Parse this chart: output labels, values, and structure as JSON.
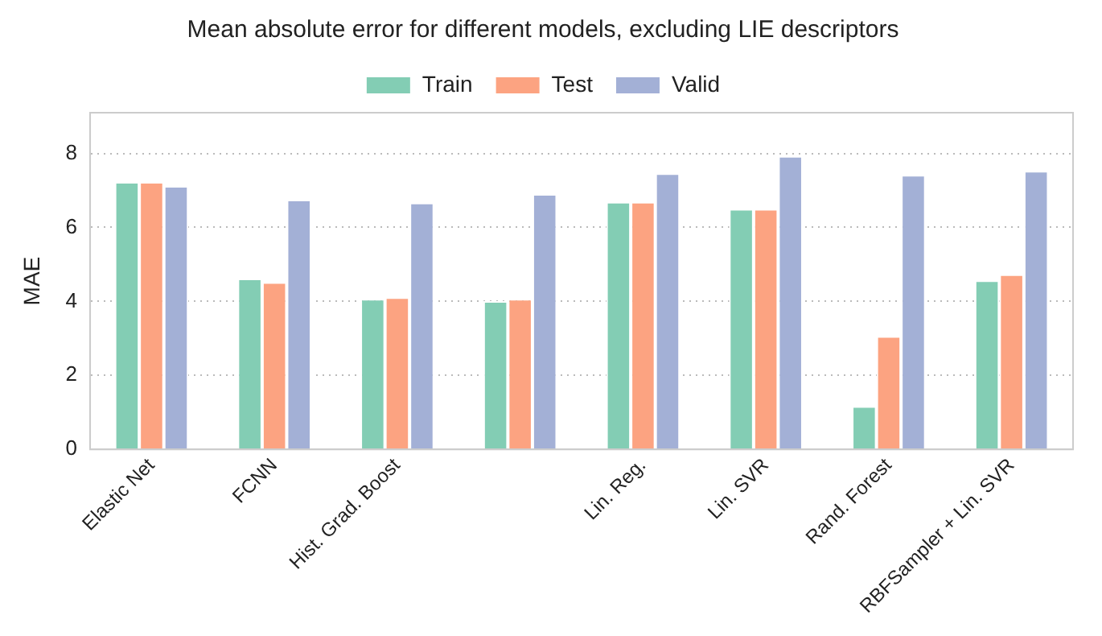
{
  "chart_data": {
    "type": "bar",
    "title": "Mean absolute error for different models, excluding LIE descriptors",
    "ylabel": "MAE",
    "categories": [
      "Elastic Net",
      "FCNN",
      "Hist. Grad. Boost",
      null,
      "Lin. Reg.",
      "Lin. SVR",
      "Rand. Forest",
      "RBFSampler + Lin. SVR"
    ],
    "series": [
      {
        "name": "Train",
        "color": "#83cdb4",
        "values": [
          7.23,
          4.62,
          4.07,
          4.01,
          6.69,
          6.5,
          1.17,
          4.57
        ]
      },
      {
        "name": "Test",
        "color": "#fca381",
        "values": [
          7.23,
          4.52,
          4.11,
          4.07,
          6.69,
          6.5,
          3.06,
          4.73
        ]
      },
      {
        "name": "Valid",
        "color": "#a3b0d6",
        "values": [
          7.12,
          6.75,
          6.67,
          6.9,
          7.46,
          7.93,
          7.42,
          7.53
        ]
      }
    ],
    "ylim": [
      0,
      9.1
    ],
    "yticks": [
      0,
      2,
      4,
      6,
      8
    ],
    "grid": "y",
    "legend": "top"
  }
}
